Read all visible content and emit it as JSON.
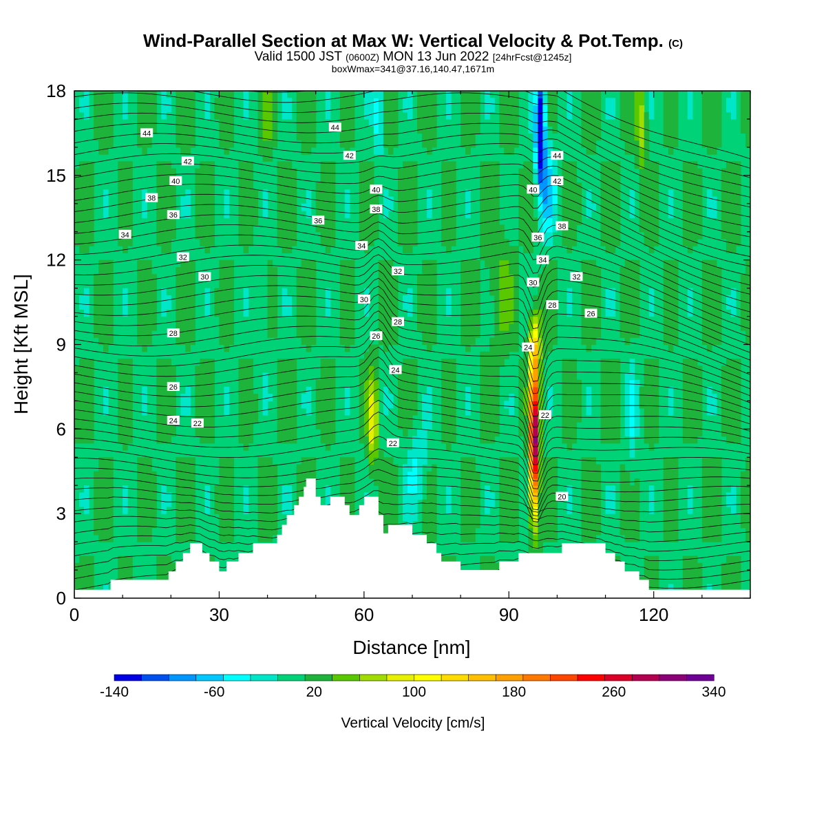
{
  "titles": {
    "main": "Wind-Parallel Section at Max W: Vertical Velocity & Pot.Temp.",
    "main_mark": "(C)",
    "sub_a": "Valid 1500 JST",
    "sub_b": "(0600Z)",
    "sub_c": "MON 13 Jun 2022",
    "sub_d": "[24hrFcst@1245z]",
    "box": "boxWmax=341@37.16,140.47,1671m"
  },
  "chart_data": {
    "type": "heatmap",
    "xlabel": "Distance [nm]",
    "ylabel": "Height [Kft MSL]",
    "xlim": [
      0,
      140
    ],
    "ylim": [
      0,
      18
    ],
    "x_ticks": [
      0,
      30,
      60,
      90,
      120
    ],
    "y_ticks": [
      0,
      3,
      6,
      9,
      12,
      15,
      18
    ],
    "colorbar": {
      "label": "Vertical Velocity [cm/s]",
      "min": -140,
      "max": 340,
      "tick_values": [
        -140,
        -60,
        20,
        100,
        180,
        260,
        340
      ],
      "tick_labels": [
        "-140",
        "-60",
        "20",
        "100",
        "180",
        "260",
        "340"
      ],
      "colors": [
        "#0000e6",
        "#0050f0",
        "#0096ff",
        "#00c8ff",
        "#00ffff",
        "#00e6c8",
        "#00d278",
        "#1eb43c",
        "#5ac800",
        "#a0dc00",
        "#e6f000",
        "#ffff00",
        "#ffdc00",
        "#ffbe00",
        "#ffa000",
        "#ff7800",
        "#ff4600",
        "#ff0000",
        "#dc0028",
        "#b40050",
        "#8c0078",
        "#6e0096"
      ]
    },
    "theta_labels": [
      {
        "x": 15,
        "y": 16.5,
        "text": "44"
      },
      {
        "x": 54,
        "y": 16.7,
        "text": "44"
      },
      {
        "x": 100,
        "y": 15.7,
        "text": "44"
      },
      {
        "x": 23.5,
        "y": 15.5,
        "text": "42"
      },
      {
        "x": 57,
        "y": 15.7,
        "text": "42"
      },
      {
        "x": 100,
        "y": 14.8,
        "text": "42"
      },
      {
        "x": 21,
        "y": 14.8,
        "text": "40"
      },
      {
        "x": 62.5,
        "y": 14.5,
        "text": "40"
      },
      {
        "x": 95,
        "y": 14.5,
        "text": "40"
      },
      {
        "x": 16,
        "y": 14.2,
        "text": "38"
      },
      {
        "x": 62.5,
        "y": 13.8,
        "text": "38"
      },
      {
        "x": 101,
        "y": 13.2,
        "text": "38"
      },
      {
        "x": 20.5,
        "y": 13.6,
        "text": "36"
      },
      {
        "x": 50.5,
        "y": 13.4,
        "text": "36"
      },
      {
        "x": 96,
        "y": 12.8,
        "text": "36"
      },
      {
        "x": 10.5,
        "y": 12.9,
        "text": "34"
      },
      {
        "x": 59.5,
        "y": 12.5,
        "text": "34"
      },
      {
        "x": 97,
        "y": 12.0,
        "text": "34"
      },
      {
        "x": 22.5,
        "y": 12.1,
        "text": "32"
      },
      {
        "x": 67,
        "y": 11.6,
        "text": "32"
      },
      {
        "x": 104,
        "y": 11.4,
        "text": "32"
      },
      {
        "x": 27,
        "y": 11.4,
        "text": "30"
      },
      {
        "x": 60,
        "y": 10.6,
        "text": "30"
      },
      {
        "x": 95,
        "y": 11.2,
        "text": "30"
      },
      {
        "x": 67,
        "y": 9.8,
        "text": "28"
      },
      {
        "x": 99,
        "y": 10.4,
        "text": "28"
      },
      {
        "x": 20.5,
        "y": 9.4,
        "text": "28"
      },
      {
        "x": 62.5,
        "y": 9.3,
        "text": "26"
      },
      {
        "x": 107,
        "y": 10.1,
        "text": "26"
      },
      {
        "x": 20.5,
        "y": 7.5,
        "text": "26"
      },
      {
        "x": 66.5,
        "y": 8.1,
        "text": "24"
      },
      {
        "x": 94,
        "y": 8.9,
        "text": "24"
      },
      {
        "x": 20.5,
        "y": 6.3,
        "text": "24"
      },
      {
        "x": 25.5,
        "y": 6.2,
        "text": "22"
      },
      {
        "x": 66,
        "y": 5.5,
        "text": "22"
      },
      {
        "x": 97.5,
        "y": 6.5,
        "text": "22"
      },
      {
        "x": 101,
        "y": 3.6,
        "text": "20"
      }
    ]
  }
}
